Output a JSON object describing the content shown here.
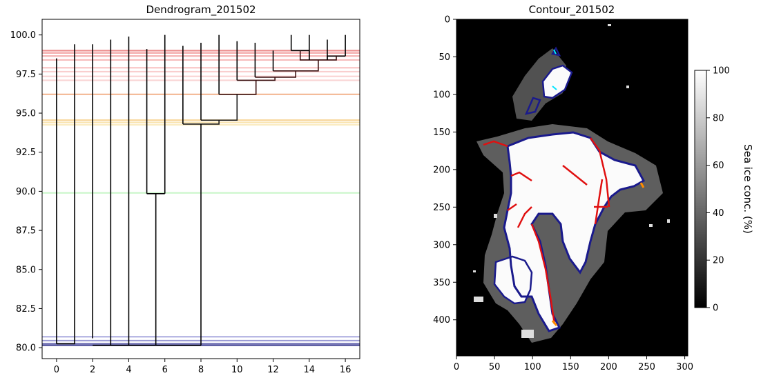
{
  "chart_data": [
    {
      "type": "dendrogram",
      "title": "Dendrogram_201502",
      "xlabel": "",
      "ylabel": "",
      "xlim": [
        -0.8,
        16.8
      ],
      "ylim": [
        79.3,
        101.0
      ],
      "xticks": [
        0,
        2,
        4,
        6,
        8,
        10,
        12,
        14,
        16
      ],
      "yticks": [
        80.0,
        82.5,
        85.0,
        87.5,
        90.0,
        92.5,
        95.0,
        97.5,
        100.0
      ],
      "xtick_labels": [
        "0",
        "2",
        "4",
        "6",
        "8",
        "10",
        "12",
        "14",
        "16"
      ],
      "ytick_labels": [
        "80.0",
        "82.5",
        "85.0",
        "87.5",
        "90.0",
        "92.5",
        "95.0",
        "97.5",
        "100.0"
      ],
      "grid": false,
      "leaves": [
        {
          "x": 0,
          "top": 98.5
        },
        {
          "x": 1,
          "top": 99.4
        },
        {
          "x": 2,
          "top": 99.4
        },
        {
          "x": 3,
          "top": 99.7
        },
        {
          "x": 4,
          "top": 99.9
        },
        {
          "x": 5,
          "top": 99.1
        },
        {
          "x": 6,
          "top": 100.0
        },
        {
          "x": 7,
          "top": 99.3
        },
        {
          "x": 8,
          "top": 99.5
        },
        {
          "x": 9,
          "top": 100.0
        },
        {
          "x": 10,
          "top": 99.6
        },
        {
          "x": 11,
          "top": 99.5
        },
        {
          "x": 12,
          "top": 99.0
        },
        {
          "x": 13,
          "top": 100.0
        },
        {
          "x": 14,
          "top": 100.0
        },
        {
          "x": 15,
          "top": 99.7
        },
        {
          "x": 16,
          "top": 100.0
        }
      ],
      "links": [
        {
          "left": 0,
          "right": 1,
          "height": 80.25,
          "left_bottom": 80.25,
          "right_bottom": 80.7,
          "color": "#000000"
        },
        {
          "left": 5,
          "right": 6,
          "height": 89.85,
          "left_bottom": 89.85,
          "right_bottom": 89.85,
          "color": "#000000"
        },
        {
          "left": 5.5,
          "right": 5.5,
          "height": 80.15,
          "left_bottom": 80.15,
          "right_bottom": 89.85,
          "color": "#000000"
        },
        {
          "left": 13,
          "right": 14,
          "height": 99.0,
          "left_bottom": 99.0,
          "right_bottom": 98.4,
          "color": "#000000"
        },
        {
          "left": 15,
          "right": 16,
          "height": 98.65,
          "left_bottom": 98.4,
          "right_bottom": 98.65,
          "color": "#000000"
        },
        {
          "left": 13.5,
          "right": 15.5,
          "height": 98.4,
          "left_bottom": 99.0,
          "right_bottom": 98.65,
          "color": "#3a1010"
        },
        {
          "left": 12,
          "right": 14.5,
          "height": 97.7,
          "left_bottom": 97.7,
          "right_bottom": 98.4,
          "color": "#3a1010"
        },
        {
          "left": 11,
          "right": 13.25,
          "height": 97.3,
          "left_bottom": 97.3,
          "right_bottom": 97.7,
          "color": "#3a1010"
        },
        {
          "left": 10,
          "right": 12.1,
          "height": 97.1,
          "left_bottom": 97.1,
          "right_bottom": 97.3,
          "color": "#3a1010"
        },
        {
          "left": 9,
          "right": 11.05,
          "height": 96.2,
          "left_bottom": 96.2,
          "right_bottom": 97.1,
          "color": "#3a1010"
        },
        {
          "left": 8,
          "right": 10.0,
          "height": 94.55,
          "left_bottom": 94.55,
          "right_bottom": 96.2,
          "color": "#1a1a1a"
        },
        {
          "left": 7,
          "right": 9.0,
          "height": 94.3,
          "left_bottom": 94.3,
          "right_bottom": 94.55,
          "color": "#1a1a1a"
        },
        {
          "left": 8.0,
          "right": 8.0,
          "height": 80.15,
          "left_bottom": 80.15,
          "right_bottom": 94.3,
          "color": "#000000"
        }
      ],
      "threshold_lines": [
        {
          "y": 99.0,
          "color": "#e66a6a"
        },
        {
          "y": 98.85,
          "color": "#f08a8a"
        },
        {
          "y": 98.65,
          "color": "#f29a9a"
        },
        {
          "y": 98.4,
          "color": "#f4a6a6"
        },
        {
          "y": 97.9,
          "color": "#f7b5b5"
        },
        {
          "y": 97.65,
          "color": "#f8c0c0"
        },
        {
          "y": 97.35,
          "color": "#f9c6c6"
        },
        {
          "y": 97.1,
          "color": "#f9c6c6"
        },
        {
          "y": 96.2,
          "color": "#f0a070"
        },
        {
          "y": 94.55,
          "color": "#f5c878"
        },
        {
          "y": 94.4,
          "color": "#f8dc96"
        },
        {
          "y": 94.25,
          "color": "#fae6ae"
        },
        {
          "y": 89.9,
          "color": "#b8f2b8"
        },
        {
          "y": 80.7,
          "color": "#9999d9"
        },
        {
          "y": 80.45,
          "color": "#7b7bc8"
        },
        {
          "y": 80.25,
          "color": "#3a3a99"
        },
        {
          "y": 80.15,
          "color": "#1f1f80"
        }
      ]
    },
    {
      "type": "heatmap",
      "title": "Contour_201502",
      "xlabel": "",
      "ylabel": "",
      "xlim": [
        0,
        304
      ],
      "ylim": [
        448,
        0
      ],
      "xticks": [
        0,
        50,
        100,
        150,
        200,
        250,
        300
      ],
      "yticks": [
        0,
        50,
        100,
        150,
        200,
        250,
        300,
        350,
        400
      ],
      "xtick_labels": [
        "0",
        "50",
        "100",
        "150",
        "200",
        "250",
        "300"
      ],
      "ytick_labels": [
        "0",
        "50",
        "100",
        "150",
        "200",
        "250",
        "300",
        "350",
        "400"
      ],
      "colormap": "gray",
      "background_color": "#000000",
      "contour_colors": [
        "#1a1a8c",
        "#e01010",
        "#ff8c00",
        "#00e5ff"
      ],
      "colorbar": {
        "label": "Sea ice conc. (%)",
        "range": [
          0,
          100
        ],
        "ticks": [
          0,
          20,
          40,
          60,
          80,
          100
        ],
        "tick_labels": [
          "0",
          "20",
          "40",
          "60",
          "80",
          "100"
        ]
      }
    }
  ]
}
